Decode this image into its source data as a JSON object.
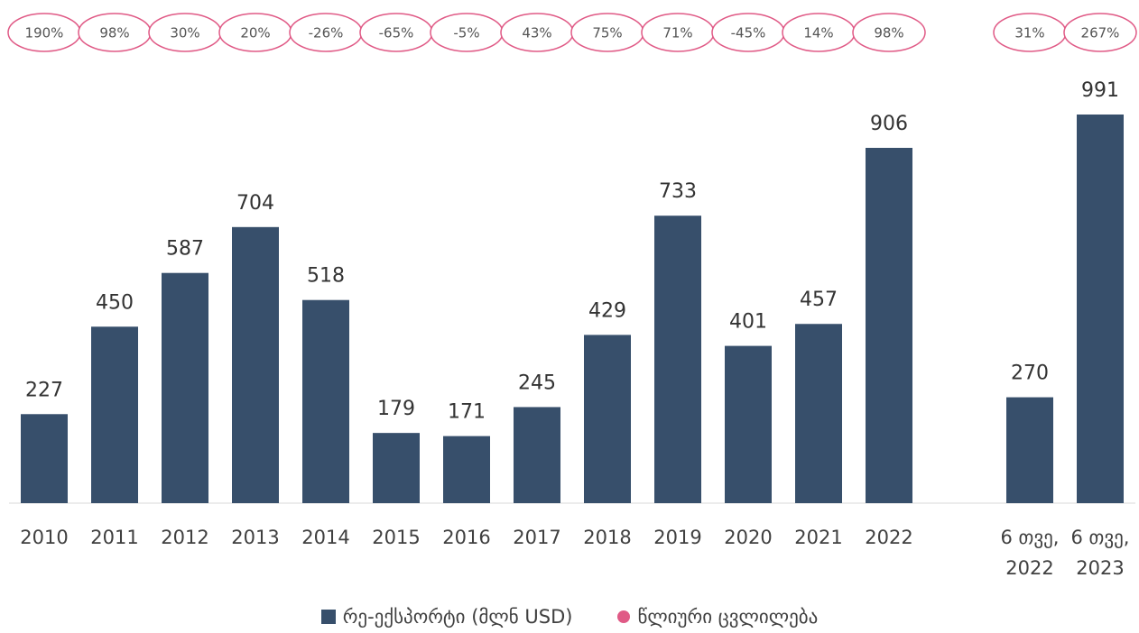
{
  "chart_data": {
    "type": "bar",
    "categories": [
      "2010",
      "2011",
      "2012",
      "2013",
      "2014",
      "2015",
      "2016",
      "2017",
      "2018",
      "2019",
      "2020",
      "2021",
      "2022",
      null,
      "6 თვე, 2022",
      "6 თვე, 2023"
    ],
    "series": [
      {
        "name": "რე-ექსპორტი (მლნ USD)",
        "color": "#374f6b",
        "values": [
          227,
          450,
          587,
          704,
          518,
          179,
          171,
          245,
          429,
          733,
          401,
          457,
          906,
          null,
          270,
          991
        ]
      },
      {
        "name": "წლიური ცვლილება",
        "color": "#e05a86",
        "values": [
          190,
          98,
          30,
          20,
          -26,
          -65,
          -5,
          43,
          75,
          71,
          -45,
          14,
          98,
          null,
          31,
          267
        ],
        "value_labels": [
          "190%",
          "98%",
          "30%",
          "20%",
          "-26%",
          "-65%",
          "-5%",
          "43%",
          "75%",
          "71%",
          "-45%",
          "14%",
          "98%",
          null,
          "31%",
          "267%"
        ]
      }
    ]
  }
}
